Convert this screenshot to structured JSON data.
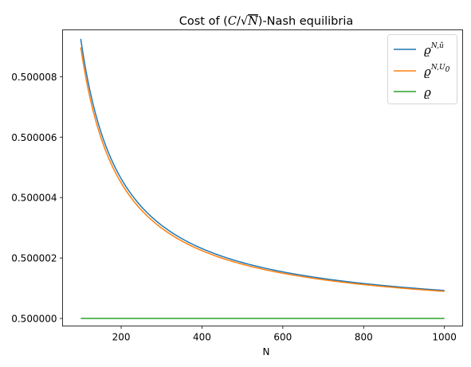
{
  "chart_data": {
    "type": "line",
    "title": {
      "prefix": "Cost of (",
      "C": "C",
      "slash": "/",
      "sqrt_sign": "√",
      "N": "N",
      "suffix": ")-Nash equilibria"
    },
    "xlabel": "N",
    "ylabel": "",
    "xlim": [
      55,
      1045
    ],
    "ylim": [
      499999.75,
      500009.55
    ],
    "y_scale_note": "y values in units of 1e-6",
    "x_ticks": [
      200,
      400,
      600,
      800,
      1000
    ],
    "x_tick_labels": [
      "200",
      "400",
      "600",
      "800",
      "1000"
    ],
    "y_ticks": [
      500000,
      500002,
      500004,
      500006,
      500008
    ],
    "y_tick_labels": [
      "0.500000",
      "0.500002",
      "0.500004",
      "0.500006",
      "0.500008"
    ],
    "grid": false,
    "legend_position": "top-right",
    "series": [
      {
        "name": "ϱ^{N,ũ}",
        "legend": {
          "base": "ϱ",
          "sup": "N,ũ"
        },
        "color": "#1f77b4",
        "model": {
          "asymptote": 500000,
          "coef": 925,
          "x_from": 100,
          "x_to": 1000
        }
      },
      {
        "name": "ϱ^{N,U_0}",
        "legend": {
          "base": "ϱ",
          "sup": "N,U",
          "sub": "0"
        },
        "color": "#ff7f0e",
        "model": {
          "asymptote": 500000,
          "coef": 897,
          "x_from": 100,
          "x_to": 1000
        }
      },
      {
        "name": "ϱ",
        "legend": {
          "base": "ϱ"
        },
        "color": "#2ca02c",
        "model": {
          "asymptote": 500000,
          "coef": 0,
          "x_from": 100,
          "x_to": 1000
        }
      }
    ]
  }
}
